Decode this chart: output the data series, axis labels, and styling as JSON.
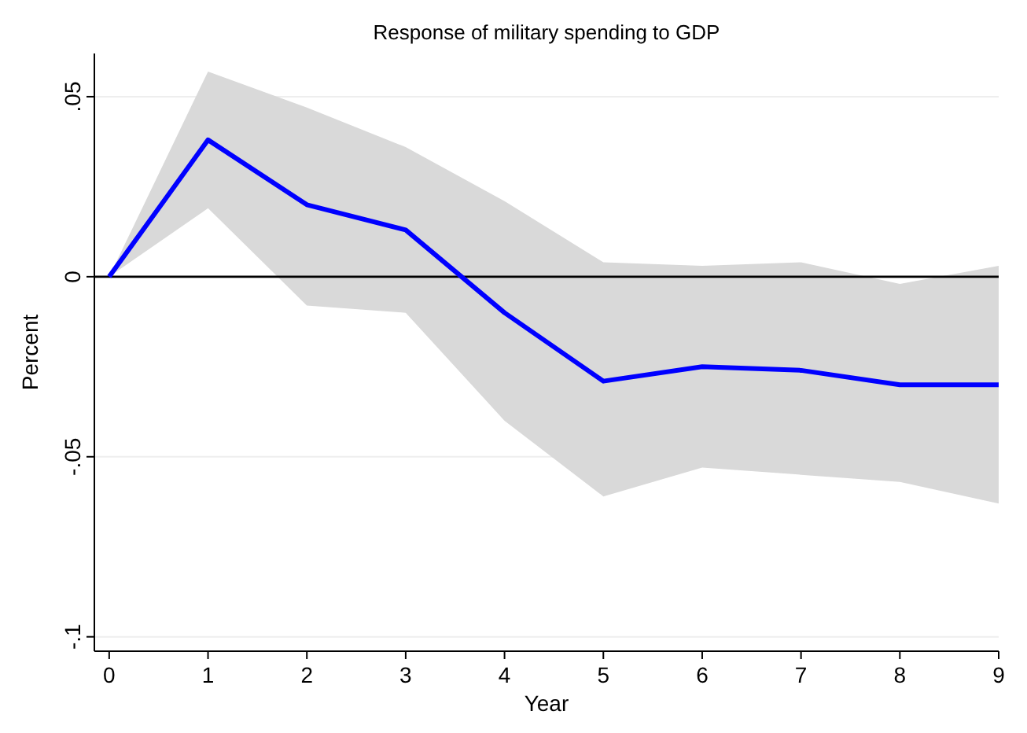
{
  "chart_data": {
    "type": "line",
    "title": "Response of military spending to GDP",
    "xlabel": "Year",
    "ylabel": "Percent",
    "x": [
      0,
      1,
      2,
      3,
      4,
      5,
      6,
      7,
      8,
      9
    ],
    "series": [
      {
        "color": "#0000ff",
        "values": [
          0,
          0.038,
          0.02,
          0.013,
          -0.01,
          -0.029,
          -0.025,
          -0.026,
          -0.03,
          -0.03
        ],
        "lower": [
          0,
          0.019,
          -0.008,
          -0.01,
          -0.04,
          -0.061,
          -0.053,
          -0.055,
          -0.057,
          -0.063
        ],
        "upper": [
          0,
          0.057,
          0.047,
          0.036,
          0.021,
          0.004,
          0.003,
          0.004,
          -0.002,
          0.003
        ]
      }
    ],
    "xlim": [
      -0.15,
      9
    ],
    "ylim": [
      -0.104,
      0.062
    ],
    "xticks": [
      0,
      1,
      2,
      3,
      4,
      5,
      6,
      7,
      8,
      9
    ],
    "yticks": [
      {
        "value": -0.1,
        "label": "-.1"
      },
      {
        "value": -0.05,
        "label": "-.05"
      },
      {
        "value": 0,
        "label": "0"
      },
      {
        "value": 0.05,
        "label": ".05"
      }
    ],
    "grid": "y",
    "marker": "none",
    "line_style": "solid",
    "ref_lines": [
      {
        "axis": "y",
        "value": 0,
        "color": "#000000"
      }
    ]
  }
}
